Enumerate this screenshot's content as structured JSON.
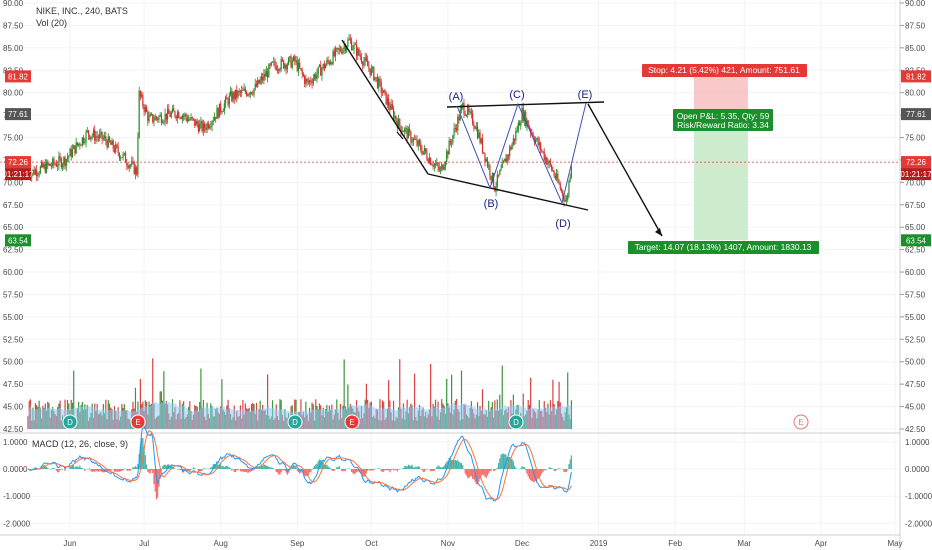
{
  "header": {
    "title": "NIKE, INC., 240, BATS",
    "vol_label": "Vol (20)"
  },
  "macd_label": "MACD (12, 26, close, 9)",
  "colors": {
    "up": "#2a8a2a",
    "down": "#d32f2f",
    "ma": "#90caf9",
    "macd": "#2196f3",
    "signal": "#ff7043",
    "hist_up": "#26a69a",
    "hist_down": "#ef5350"
  },
  "price_axis": {
    "ticks": [
      "90.00",
      "87.50",
      "85.00",
      "82.50",
      "80.00",
      "77.50",
      "75.00",
      "72.50",
      "70.00",
      "67.50",
      "65.00",
      "62.50",
      "60.00",
      "57.50",
      "55.00",
      "52.50",
      "50.00",
      "47.50",
      "45.00",
      "42.50"
    ]
  },
  "macd_axis": {
    "ticks": [
      "1.0000",
      "0.0000",
      "-1.0000",
      "-2.0000"
    ]
  },
  "time_axis": {
    "ticks": [
      "Jun",
      "Jul",
      "Aug",
      "Sep",
      "Oct",
      "Nov",
      "Dec",
      "2019",
      "Feb",
      "Mar",
      "Apr",
      "May"
    ]
  },
  "price_tags": {
    "stop": "81.82",
    "entry": "77.61",
    "last": "72.26",
    "countdown": "01:21:17",
    "target": "63.54"
  },
  "position": {
    "stop_label": "Stop: 4.21 (5.42%) 421, Amount: 751.61",
    "open_label": "Open P&L: 5.35, Qty: 59",
    "rr_label": "Risk/Reward Ratio: 3.34",
    "target_label": "Target: 14.07 (18.13%) 1407, Amount: 1830.13"
  },
  "pattern_labels": [
    "(A)",
    "(B)",
    "(C)",
    "(D)",
    "(E)"
  ],
  "events": [
    {
      "letter": "D"
    },
    {
      "letter": "E"
    },
    {
      "letter": "D"
    },
    {
      "letter": "E"
    },
    {
      "letter": "D"
    },
    {
      "letter": "E"
    }
  ],
  "chart_data": {
    "type": "candlestick",
    "title": "NIKE, INC., 240, BATS",
    "ylim": [
      42.5,
      90
    ],
    "anchors": [
      [
        "2018-05-15",
        71.0
      ],
      [
        "2018-05-30",
        72.5
      ],
      [
        "2018-06-08",
        75.5
      ],
      [
        "2018-06-15",
        74.8
      ],
      [
        "2018-06-22",
        73.0
      ],
      [
        "2018-06-28",
        71.2
      ],
      [
        "2018-06-29",
        79.8
      ],
      [
        "2018-07-03",
        77.0
      ],
      [
        "2018-07-15",
        77.8
      ],
      [
        "2018-07-25",
        76.0
      ],
      [
        "2018-08-05",
        79.5
      ],
      [
        "2018-08-15",
        80.5
      ],
      [
        "2018-08-22",
        83.0
      ],
      [
        "2018-08-31",
        83.5
      ],
      [
        "2018-09-05",
        81.0
      ],
      [
        "2018-09-12",
        83.0
      ],
      [
        "2018-09-22",
        85.8
      ],
      [
        "2018-10-02",
        82.0
      ],
      [
        "2018-10-12",
        76.5
      ],
      [
        "2018-10-22",
        73.5
      ],
      [
        "2018-10-29",
        71.2
      ],
      [
        "2018-11-07",
        78.5
      ],
      [
        "2018-11-12",
        76.5
      ],
      [
        "2018-11-20",
        69.5
      ],
      [
        "2018-11-28",
        75.0
      ],
      [
        "2018-12-01",
        77.8
      ],
      [
        "2018-12-06",
        75.0
      ],
      [
        "2018-12-13",
        71.5
      ],
      [
        "2018-12-19",
        67.8
      ],
      [
        "2018-12-21",
        72.3
      ]
    ],
    "ma_series": "volume moving average (20)"
  }
}
